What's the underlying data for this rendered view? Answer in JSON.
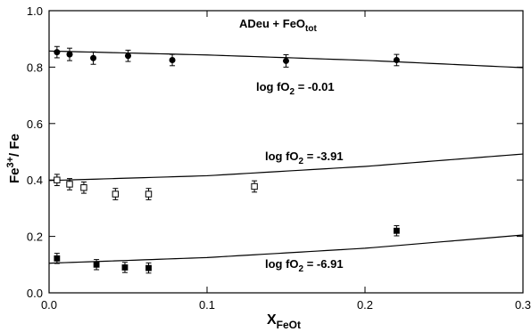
{
  "chart_data": {
    "type": "scatter",
    "title": {
      "main": "ADeu + FeO",
      "sub": "tot"
    },
    "xlabel": {
      "main": "X",
      "sub": "FeOt"
    },
    "ylabel": {
      "main": "Fe",
      "sup": "3+",
      "rest": "/ Fe"
    },
    "xlim": [
      0.0,
      0.3
    ],
    "ylim": [
      0.0,
      1.0
    ],
    "x_ticks": [
      "0.0",
      "0.1",
      "0.2",
      "0.3"
    ],
    "y_ticks": [
      "0.0",
      "0.2",
      "0.4",
      "0.6",
      "0.8",
      "1.0"
    ],
    "x_tick_values": [
      0.0,
      0.1,
      0.2,
      0.3
    ],
    "y_tick_values": [
      0.0,
      0.2,
      0.4,
      0.6,
      0.8,
      1.0
    ],
    "grid": false,
    "series": [
      {
        "marker": "filled-circle",
        "label": {
          "pre": "log fO",
          "sub": "2",
          "post": " = -0.01"
        },
        "points": [
          {
            "x": 0.005,
            "y": 0.853,
            "err": 0.02
          },
          {
            "x": 0.013,
            "y": 0.845,
            "err": 0.022
          },
          {
            "x": 0.028,
            "y": 0.832,
            "err": 0.022
          },
          {
            "x": 0.05,
            "y": 0.84,
            "err": 0.02
          },
          {
            "x": 0.078,
            "y": 0.825,
            "err": 0.02
          },
          {
            "x": 0.15,
            "y": 0.822,
            "err": 0.022
          },
          {
            "x": 0.22,
            "y": 0.825,
            "err": 0.02
          }
        ],
        "fit": [
          {
            "x": 0.0,
            "y": 0.857
          },
          {
            "x": 0.1,
            "y": 0.843
          },
          {
            "x": 0.2,
            "y": 0.824
          },
          {
            "x": 0.3,
            "y": 0.798
          }
        ]
      },
      {
        "marker": "open-square",
        "label": {
          "pre": "log fO",
          "sub": "2",
          "post": " = -3.91"
        },
        "points": [
          {
            "x": 0.005,
            "y": 0.4,
            "err": 0.02
          },
          {
            "x": 0.013,
            "y": 0.385,
            "err": 0.02
          },
          {
            "x": 0.022,
            "y": 0.373,
            "err": 0.02
          },
          {
            "x": 0.042,
            "y": 0.35,
            "err": 0.02
          },
          {
            "x": 0.063,
            "y": 0.35,
            "err": 0.02
          },
          {
            "x": 0.13,
            "y": 0.377,
            "err": 0.02
          }
        ],
        "fit": [
          {
            "x": 0.0,
            "y": 0.398
          },
          {
            "x": 0.1,
            "y": 0.415
          },
          {
            "x": 0.2,
            "y": 0.448
          },
          {
            "x": 0.3,
            "y": 0.492
          }
        ]
      },
      {
        "marker": "filled-square",
        "label": {
          "pre": "log fO",
          "sub": "2",
          "post": " = -6.91"
        },
        "points": [
          {
            "x": 0.005,
            "y": 0.122,
            "err": 0.018
          },
          {
            "x": 0.03,
            "y": 0.1,
            "err": 0.018
          },
          {
            "x": 0.048,
            "y": 0.09,
            "err": 0.018
          },
          {
            "x": 0.063,
            "y": 0.088,
            "err": 0.018
          },
          {
            "x": 0.22,
            "y": 0.22,
            "err": 0.018
          }
        ],
        "fit": [
          {
            "x": 0.0,
            "y": 0.105
          },
          {
            "x": 0.1,
            "y": 0.125
          },
          {
            "x": 0.2,
            "y": 0.158
          },
          {
            "x": 0.3,
            "y": 0.205
          }
        ]
      }
    ]
  }
}
